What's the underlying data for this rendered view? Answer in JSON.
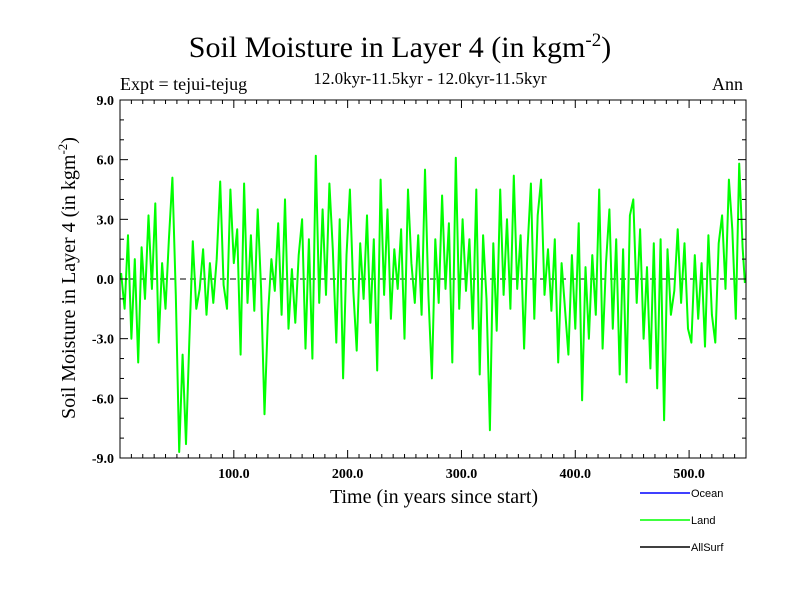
{
  "chart_data": {
    "type": "line",
    "title": "Soil Moisture in Layer 4 (in kgm",
    "title_sup": "-2",
    "title_end": ")",
    "subtitle_left": "Expt = tejui-tejug",
    "subtitle_center": "12.0kyr-11.5kyr - 12.0kyr-11.5kyr",
    "subtitle_right": "Ann",
    "xlabel": "Time (in years since start)",
    "ylabel": "Soil Moisture in Layer 4 (in kgm",
    "ylabel_sup": "-2",
    "ylabel_end": ")",
    "xlim": [
      0,
      550
    ],
    "ylim": [
      -9,
      9
    ],
    "xticks": [
      100,
      200,
      300,
      400,
      500
    ],
    "xtick_labels": [
      "100.0",
      "200.0",
      "300.0",
      "400.0",
      "500.0"
    ],
    "yticks": [
      -9,
      -6,
      -3,
      0,
      3,
      6,
      9
    ],
    "ytick_labels": [
      "-9.0",
      "-6.0",
      "-3.0",
      "0.0",
      "3.0",
      "6.0",
      "9.0"
    ],
    "zero_line": 0,
    "series": [
      {
        "name": "Land",
        "color": "#00ff00",
        "points": [
          [
            1,
            0.3
          ],
          [
            4,
            -1.5
          ],
          [
            7,
            2.2
          ],
          [
            10,
            -3.0
          ],
          [
            13,
            1.0
          ],
          [
            16,
            -4.2
          ],
          [
            19,
            1.6
          ],
          [
            22,
            -1.0
          ],
          [
            25,
            3.2
          ],
          [
            28,
            -0.5
          ],
          [
            31,
            3.8
          ],
          [
            34,
            -3.2
          ],
          [
            37,
            0.8
          ],
          [
            40,
            -1.5
          ],
          [
            43,
            2.0
          ],
          [
            46,
            5.1
          ],
          [
            49,
            -0.8
          ],
          [
            52,
            -8.7
          ],
          [
            55,
            -3.8
          ],
          [
            58,
            -8.3
          ],
          [
            61,
            -3.0
          ],
          [
            64,
            1.9
          ],
          [
            67,
            -1.5
          ],
          [
            70,
            -0.5
          ],
          [
            73,
            1.5
          ],
          [
            76,
            -1.8
          ],
          [
            79,
            0.8
          ],
          [
            82,
            -1.2
          ],
          [
            85,
            1.0
          ],
          [
            88,
            4.9
          ],
          [
            91,
            -0.3
          ],
          [
            94,
            -1.5
          ],
          [
            97,
            4.5
          ],
          [
            100,
            0.8
          ],
          [
            103,
            2.5
          ],
          [
            106,
            -3.8
          ],
          [
            109,
            4.8
          ],
          [
            112,
            -1.2
          ],
          [
            115,
            2.2
          ],
          [
            118,
            -1.6
          ],
          [
            121,
            3.5
          ],
          [
            124,
            -0.5
          ],
          [
            127,
            -6.8
          ],
          [
            130,
            -1.8
          ],
          [
            133,
            1.0
          ],
          [
            136,
            -0.6
          ],
          [
            139,
            2.8
          ],
          [
            142,
            -1.8
          ],
          [
            145,
            4.0
          ],
          [
            148,
            -2.5
          ],
          [
            151,
            0.5
          ],
          [
            154,
            -2.2
          ],
          [
            157,
            1.2
          ],
          [
            160,
            3.0
          ],
          [
            163,
            -3.5
          ],
          [
            166,
            2.0
          ],
          [
            169,
            -4.0
          ],
          [
            172,
            6.2
          ],
          [
            175,
            -1.2
          ],
          [
            178,
            3.5
          ],
          [
            181,
            -0.8
          ],
          [
            184,
            4.8
          ],
          [
            187,
            1.5
          ],
          [
            190,
            -3.2
          ],
          [
            193,
            3.0
          ],
          [
            196,
            -5.0
          ],
          [
            199,
            1.2
          ],
          [
            202,
            4.5
          ],
          [
            205,
            -0.6
          ],
          [
            208,
            -3.6
          ],
          [
            211,
            1.8
          ],
          [
            214,
            -1.0
          ],
          [
            217,
            3.2
          ],
          [
            220,
            -2.2
          ],
          [
            223,
            2.0
          ],
          [
            226,
            -4.6
          ],
          [
            229,
            5.0
          ],
          [
            232,
            -0.8
          ],
          [
            235,
            3.5
          ],
          [
            238,
            -2.0
          ],
          [
            241,
            1.5
          ],
          [
            244,
            -0.5
          ],
          [
            247,
            2.5
          ],
          [
            250,
            -3.0
          ],
          [
            253,
            4.5
          ],
          [
            256,
            0.8
          ],
          [
            259,
            -1.2
          ],
          [
            262,
            2.2
          ],
          [
            265,
            -1.8
          ],
          [
            268,
            5.5
          ],
          [
            271,
            -0.8
          ],
          [
            274,
            -5.0
          ],
          [
            277,
            2.0
          ],
          [
            280,
            -1.2
          ],
          [
            283,
            4.2
          ],
          [
            286,
            -0.5
          ],
          [
            289,
            2.8
          ],
          [
            292,
            -4.2
          ],
          [
            295,
            6.1
          ],
          [
            298,
            -1.5
          ],
          [
            301,
            3.0
          ],
          [
            304,
            -0.6
          ],
          [
            307,
            2.0
          ],
          [
            310,
            -2.5
          ],
          [
            313,
            4.5
          ],
          [
            316,
            -4.8
          ],
          [
            319,
            2.2
          ],
          [
            322,
            -1.0
          ],
          [
            325,
            -7.6
          ],
          [
            328,
            1.8
          ],
          [
            331,
            -2.6
          ],
          [
            334,
            4.5
          ],
          [
            337,
            -0.8
          ],
          [
            340,
            3.0
          ],
          [
            343,
            -1.5
          ],
          [
            346,
            5.2
          ],
          [
            349,
            -0.5
          ],
          [
            352,
            2.2
          ],
          [
            355,
            -3.5
          ],
          [
            358,
            1.5
          ],
          [
            361,
            4.8
          ],
          [
            364,
            -2.0
          ],
          [
            367,
            3.2
          ],
          [
            370,
            5.0
          ],
          [
            373,
            -0.8
          ],
          [
            376,
            1.5
          ],
          [
            379,
            -1.6
          ],
          [
            382,
            2.0
          ],
          [
            385,
            -4.2
          ],
          [
            388,
            0.8
          ],
          [
            391,
            -1.5
          ],
          [
            394,
            -3.8
          ],
          [
            397,
            1.2
          ],
          [
            400,
            -2.5
          ],
          [
            403,
            2.8
          ],
          [
            406,
            -6.1
          ],
          [
            409,
            0.6
          ],
          [
            412,
            -3.0
          ],
          [
            415,
            1.2
          ],
          [
            418,
            -1.8
          ],
          [
            421,
            4.5
          ],
          [
            424,
            -3.5
          ],
          [
            427,
            0.8
          ],
          [
            430,
            3.5
          ],
          [
            433,
            -2.5
          ],
          [
            436,
            2.0
          ],
          [
            439,
            -4.8
          ],
          [
            442,
            1.5
          ],
          [
            445,
            -5.2
          ],
          [
            448,
            3.2
          ],
          [
            451,
            4.0
          ],
          [
            454,
            -1.2
          ],
          [
            457,
            2.5
          ],
          [
            460,
            -3.0
          ],
          [
            463,
            0.6
          ],
          [
            466,
            -4.5
          ],
          [
            469,
            1.8
          ],
          [
            472,
            -5.5
          ],
          [
            475,
            2.0
          ],
          [
            478,
            -7.1
          ],
          [
            481,
            1.5
          ],
          [
            484,
            -1.8
          ],
          [
            487,
            -0.6
          ],
          [
            490,
            2.5
          ],
          [
            493,
            -1.2
          ],
          [
            496,
            1.8
          ],
          [
            499,
            -2.5
          ],
          [
            502,
            -3.2
          ],
          [
            505,
            1.2
          ],
          [
            508,
            -2.0
          ],
          [
            511,
            0.8
          ],
          [
            514,
            -3.4
          ],
          [
            517,
            2.2
          ],
          [
            520,
            -1.8
          ],
          [
            523,
            -3.2
          ],
          [
            526,
            1.8
          ],
          [
            529,
            3.2
          ],
          [
            532,
            -0.5
          ],
          [
            535,
            5.0
          ],
          [
            538,
            2.5
          ],
          [
            541,
            -2.0
          ],
          [
            544,
            5.8
          ],
          [
            547,
            1.6
          ],
          [
            549,
            -0.2
          ]
        ]
      }
    ],
    "legend": [
      {
        "name": "Ocean",
        "color": "#0000ff"
      },
      {
        "name": "Land",
        "color": "#00ff00"
      },
      {
        "name": "AllSurf",
        "color": "#000000"
      }
    ]
  }
}
